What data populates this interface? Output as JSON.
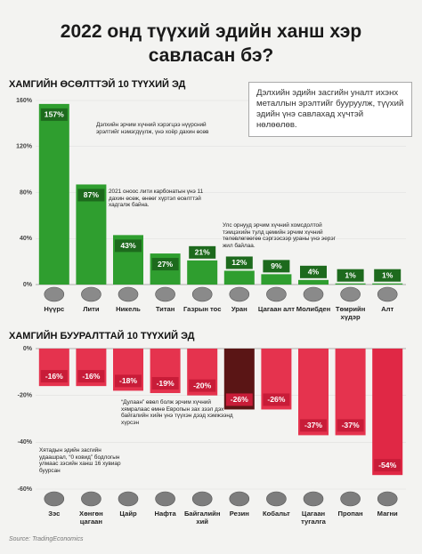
{
  "header": {
    "title": "2022 онд түүхий эдийн ханш хэр савласан бэ?"
  },
  "note": "Дэлхийн эдийн засгийн уналт ихэнх металлын эрэлтийг бууруулж, түүхий эдийн үнэ савлахад хүчтэй нөлөөлөв.",
  "source": "Source: TradingEconomics",
  "chart_data": [
    {
      "type": "bar",
      "title": "ХАМГИЙН ӨСӨЛТТЭЙ 10 ТҮҮХИЙ ЭД",
      "categories": [
        "Нүүрс",
        "Лити",
        "Никель",
        "Титан",
        "Газрын тос",
        "Уран",
        "Цагаан алт",
        "Молибден",
        "Төмрийн хүдэр",
        "Алт"
      ],
      "values": [
        157,
        87,
        43,
        27,
        21,
        12,
        9,
        4,
        1,
        1
      ],
      "value_labels": [
        "157%",
        "87%",
        "43%",
        "27%",
        "21%",
        "12%",
        "9%",
        "4%",
        "1%",
        "1%"
      ],
      "color": "#2f9e2f",
      "label_color": "#1d6a1d",
      "ylim": [
        0,
        160
      ],
      "yticks": [
        {
          "value": 0,
          "label": "0%"
        },
        {
          "value": 40,
          "label": "40%"
        },
        {
          "value": 80,
          "label": "80%"
        },
        {
          "value": 120,
          "label": "120%"
        },
        {
          "value": 160,
          "label": "160%"
        }
      ],
      "annotations": [
        "Дэлхийн эрчим хүчний хэрэгцээ нүүрсний эрэлтийг нэмэгдүүлж, үнэ хоёр дахин өсөв",
        "2021 оноос лити карбонатын үнэ 11 дахин өсөж, өнөөг хүртэл өсөлттэй хадгалж байна.",
        "Улс орнууд эрчим хүчний хомсдолтой тэмцэхийн тулд цөмийн эрчим хүчний төлөвлөгөөгөө сэргээсээр ураны үнэ эерэг жил байлаа."
      ]
    },
    {
      "type": "bar",
      "title": "ХАМГИЙН БУУРАЛТТАЙ 10 ТҮҮХИЙ ЭД",
      "categories": [
        "Зэс",
        "Хөнгөн цагаан",
        "Цайр",
        "Нафта",
        "Байгалийн хий",
        "Резин",
        "Кобальт",
        "Цагаан тугалга",
        "Пропан",
        "Магни"
      ],
      "values": [
        -16,
        -16,
        -18,
        -19,
        -20,
        -26,
        -26,
        -37,
        -37,
        -54
      ],
      "value_labels": [
        "-16%",
        "-16%",
        "-18%",
        "-19%",
        "-20%",
        "-26%",
        "-26%",
        "-37%",
        "-37%",
        "-54%"
      ],
      "colors": [
        "#e5334e",
        "#e5334e",
        "#e5334e",
        "#e5334e",
        "#e5334e",
        "#5a1515",
        "#e5334e",
        "#e5334e",
        "#e5334e",
        "#e02845"
      ],
      "label_color": "#c81c38",
      "ylim": [
        -60,
        0
      ],
      "yticks": [
        {
          "value": 0,
          "label": "0%"
        },
        {
          "value": -20,
          "label": "-20%"
        },
        {
          "value": -40,
          "label": "-40%"
        },
        {
          "value": -60,
          "label": "-60%"
        }
      ],
      "annotations": [
        "“Дулаан” өвөл болж эрчим хүчний хямралаас өмнө Европын зах зээл дэх байгалийн хийн үнэ түүхэн дээд хэмжээнд хүрсэн",
        "Хятадын эдийн засгийн удаашрал, “0 ковид” бодлогын улмаас зэсийн ханш 16 хувиар буурсан"
      ]
    }
  ]
}
